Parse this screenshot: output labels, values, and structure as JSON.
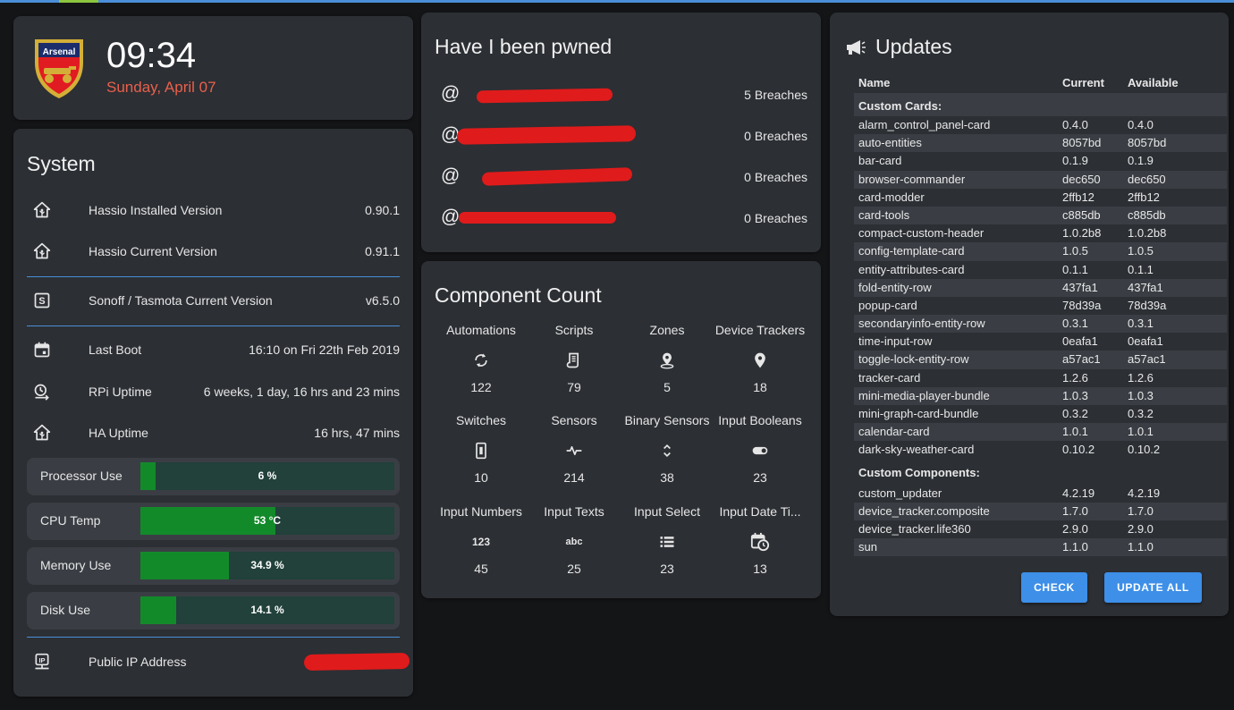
{
  "clock": {
    "crest_text": "Arsenal",
    "time": "09:34",
    "date": "Sunday, April 07"
  },
  "system": {
    "title": "System",
    "rows": [
      {
        "icon": "home-assistant-icon",
        "label": "Hassio Installed Version",
        "value": "0.90.1"
      },
      {
        "icon": "home-assistant-icon",
        "label": "Hassio Current Version",
        "value": "0.91.1"
      },
      {
        "icon": "sonoff-s-icon",
        "label": "Sonoff / Tasmota Current Version",
        "value": "v6.5.0"
      },
      {
        "icon": "calendar-icon",
        "label": "Last Boot",
        "value": "16:10 on Fri 22th Feb 2019"
      },
      {
        "icon": "clock-timer-icon",
        "label": "RPi Uptime",
        "value": "6 weeks, 1 day, 16 hrs and 23 mins"
      },
      {
        "icon": "home-assistant-icon",
        "label": "HA Uptime",
        "value": "16 hrs, 47 mins"
      }
    ],
    "bars": [
      {
        "label": "Processor Use",
        "text": "6 %",
        "percent": 6
      },
      {
        "label": "CPU Temp",
        "text": "53 °C",
        "percent": 53
      },
      {
        "label": "Memory Use",
        "text": "34.9 %",
        "percent": 34.9
      },
      {
        "label": "Disk Use",
        "text": "14.1 %",
        "percent": 14.1
      }
    ],
    "ip": {
      "icon": "ip-network-icon",
      "label": "Public IP Address"
    }
  },
  "pwned": {
    "title": "Have I been pwned",
    "at_symbol": "@",
    "rows": [
      {
        "value": "5 Breaches"
      },
      {
        "value": "0 Breaches"
      },
      {
        "value": "0 Breaches"
      },
      {
        "value": "0 Breaches"
      }
    ]
  },
  "components": {
    "title": "Component Count",
    "items": [
      {
        "name": "Automations",
        "icon": "refresh-icon",
        "count": "122"
      },
      {
        "name": "Scripts",
        "icon": "script-icon",
        "count": "79"
      },
      {
        "name": "Zones",
        "icon": "map-marker-radius-icon",
        "count": "5"
      },
      {
        "name": "Device Trackers",
        "icon": "map-marker-icon",
        "count": "18"
      },
      {
        "name": "Switches",
        "icon": "light-switch-icon",
        "count": "10"
      },
      {
        "name": "Sensors",
        "icon": "pulse-icon",
        "count": "214"
      },
      {
        "name": "Binary Sensors",
        "icon": "unfold-icon",
        "count": "38"
      },
      {
        "name": "Input Booleans",
        "icon": "toggle-icon",
        "count": "23"
      },
      {
        "name": "Input Numbers",
        "icon": "numeric-icon",
        "glyph": "123",
        "count": "45"
      },
      {
        "name": "Input Texts",
        "icon": "alphabetical-icon",
        "glyph": "abc",
        "count": "25"
      },
      {
        "name": "Input Select",
        "icon": "format-list-icon",
        "count": "23"
      },
      {
        "name": "Input Date Ti...",
        "icon": "calendar-clock-icon",
        "count": "13"
      }
    ]
  },
  "updates": {
    "title": "Updates",
    "headers": {
      "name": "Name",
      "current": "Current",
      "available": "Available"
    },
    "cards_label": "Custom Cards:",
    "cards": [
      {
        "name": "alarm_control_panel-card",
        "current": "0.4.0",
        "available": "0.4.0"
      },
      {
        "name": "auto-entities",
        "current": "8057bd",
        "available": "8057bd"
      },
      {
        "name": "bar-card",
        "current": "0.1.9",
        "available": "0.1.9"
      },
      {
        "name": "browser-commander",
        "current": "dec650",
        "available": "dec650"
      },
      {
        "name": "card-modder",
        "current": "2ffb12",
        "available": "2ffb12"
      },
      {
        "name": "card-tools",
        "current": "c885db",
        "available": "c885db"
      },
      {
        "name": "compact-custom-header",
        "current": "1.0.2b8",
        "available": "1.0.2b8"
      },
      {
        "name": "config-template-card",
        "current": "1.0.5",
        "available": "1.0.5"
      },
      {
        "name": "entity-attributes-card",
        "current": "0.1.1",
        "available": "0.1.1"
      },
      {
        "name": "fold-entity-row",
        "current": "437fa1",
        "available": "437fa1"
      },
      {
        "name": "popup-card",
        "current": "78d39a",
        "available": "78d39a"
      },
      {
        "name": "secondaryinfo-entity-row",
        "current": "0.3.1",
        "available": "0.3.1"
      },
      {
        "name": "time-input-row",
        "current": "0eafa1",
        "available": "0eafa1"
      },
      {
        "name": "toggle-lock-entity-row",
        "current": "a57ac1",
        "available": "a57ac1"
      },
      {
        "name": "tracker-card",
        "current": "1.2.6",
        "available": "1.2.6"
      },
      {
        "name": "mini-media-player-bundle",
        "current": "1.0.3",
        "available": "1.0.3"
      },
      {
        "name": "mini-graph-card-bundle",
        "current": "0.3.2",
        "available": "0.3.2"
      },
      {
        "name": "calendar-card",
        "current": "1.0.1",
        "available": "1.0.1"
      },
      {
        "name": "dark-sky-weather-card",
        "current": "0.10.2",
        "available": "0.10.2"
      }
    ],
    "components_label": "Custom Components:",
    "components": [
      {
        "name": "custom_updater",
        "current": "4.2.19",
        "available": "4.2.19"
      },
      {
        "name": "device_tracker.composite",
        "current": "1.7.0",
        "available": "1.7.0"
      },
      {
        "name": "device_tracker.life360",
        "current": "2.9.0",
        "available": "2.9.0"
      },
      {
        "name": "sun",
        "current": "1.1.0",
        "available": "1.1.0"
      }
    ],
    "check_label": "CHECK",
    "update_all_label": "UPDATE ALL"
  },
  "colors": {
    "accent": "#4a8fd8",
    "date": "#e8604c",
    "bar_fill": "#138a2a",
    "bar_track": "#21413a",
    "button": "#3d8fe8",
    "redaction": "#e01b1b"
  }
}
